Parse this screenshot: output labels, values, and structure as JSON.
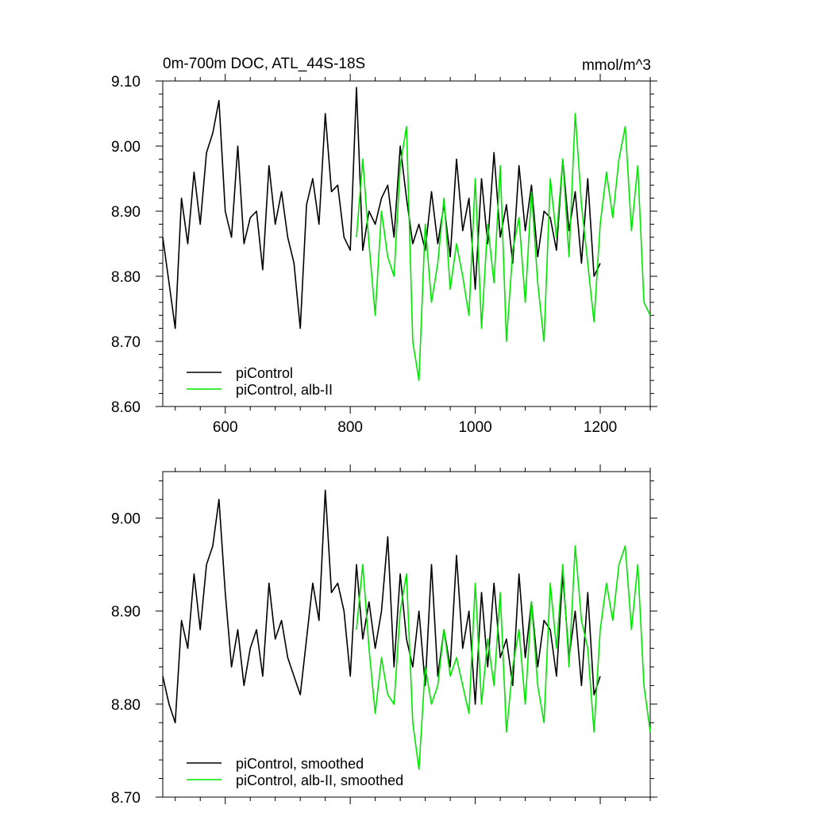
{
  "chart_data": [
    {
      "type": "line",
      "title": "0m-700m DOC, ATL_44S-18S",
      "units": "mmol/m^3",
      "xlim": [
        500,
        1280
      ],
      "ylim": [
        8.6,
        9.1
      ],
      "xticks": [
        600,
        800,
        1000,
        1200
      ],
      "xtick_labels": [
        "600",
        "800",
        "1000",
        "1200"
      ],
      "yticks": [
        8.6,
        8.7,
        8.8,
        8.9,
        9.0,
        9.1
      ],
      "ytick_labels": [
        "8.60",
        "8.70",
        "8.80",
        "8.90",
        "9.00",
        "9.10"
      ],
      "legend_position": "bottom-left",
      "series": [
        {
          "name": "piControl",
          "color": "#000000",
          "x": [
            500,
            510,
            520,
            530,
            540,
            550,
            560,
            570,
            580,
            590,
            600,
            610,
            620,
            630,
            640,
            650,
            660,
            670,
            680,
            690,
            700,
            710,
            720,
            730,
            740,
            750,
            760,
            770,
            780,
            790,
            800,
            810,
            820,
            830,
            840,
            850,
            860,
            870,
            880,
            890,
            900,
            910,
            920,
            930,
            940,
            950,
            960,
            970,
            980,
            990,
            1000,
            1010,
            1020,
            1030,
            1040,
            1050,
            1060,
            1070,
            1080,
            1090,
            1100,
            1110,
            1120,
            1130,
            1140,
            1150,
            1160,
            1170,
            1180,
            1190,
            1200
          ],
          "y": [
            8.86,
            8.79,
            8.72,
            8.92,
            8.85,
            8.96,
            8.88,
            8.99,
            9.02,
            9.07,
            8.9,
            8.86,
            9.0,
            8.85,
            8.89,
            8.9,
            8.81,
            8.97,
            8.88,
            8.93,
            8.86,
            8.82,
            8.72,
            8.91,
            8.95,
            8.88,
            9.05,
            8.93,
            8.94,
            8.86,
            8.84,
            9.09,
            8.84,
            8.9,
            8.88,
            8.92,
            8.94,
            8.86,
            9.0,
            8.92,
            8.85,
            8.88,
            8.84,
            8.93,
            8.85,
            8.91,
            8.83,
            8.98,
            8.87,
            8.92,
            8.78,
            8.95,
            8.85,
            8.99,
            8.86,
            8.91,
            8.82,
            8.97,
            8.87,
            8.94,
            8.83,
            8.9,
            8.89,
            8.84,
            8.98,
            8.87,
            8.93,
            8.82,
            8.95,
            8.8,
            8.82
          ]
        },
        {
          "name": "piControl, alb-II",
          "color": "#00e600",
          "x": [
            810,
            820,
            830,
            840,
            850,
            860,
            870,
            880,
            890,
            900,
            910,
            920,
            930,
            940,
            950,
            960,
            970,
            980,
            990,
            1000,
            1010,
            1020,
            1030,
            1040,
            1050,
            1060,
            1070,
            1080,
            1090,
            1100,
            1110,
            1120,
            1130,
            1140,
            1150,
            1160,
            1170,
            1180,
            1190,
            1200,
            1210,
            1220,
            1230,
            1240,
            1250,
            1260,
            1270,
            1280
          ],
          "y": [
            8.86,
            8.98,
            8.85,
            8.74,
            8.9,
            8.83,
            8.8,
            8.97,
            9.03,
            8.7,
            8.64,
            8.88,
            8.76,
            8.82,
            8.92,
            8.78,
            8.85,
            8.8,
            8.74,
            8.95,
            8.72,
            8.88,
            8.79,
            8.97,
            8.7,
            8.84,
            8.89,
            8.76,
            8.93,
            8.79,
            8.7,
            8.95,
            8.86,
            8.98,
            8.83,
            9.05,
            8.91,
            8.82,
            8.73,
            8.88,
            8.96,
            8.89,
            8.98,
            9.03,
            8.87,
            8.97,
            8.76,
            8.74
          ]
        }
      ]
    },
    {
      "type": "line",
      "title": "",
      "xlim": [
        500,
        1280
      ],
      "ylim": [
        8.7,
        9.05
      ],
      "xticks": [
        600,
        800,
        1000,
        1200
      ],
      "yticks": [
        8.7,
        8.8,
        8.9,
        9.0
      ],
      "ytick_labels": [
        "8.70",
        "8.80",
        "8.90",
        "9.00"
      ],
      "legend_position": "bottom-left",
      "series": [
        {
          "name": "piControl, smoothed",
          "color": "#000000",
          "x": [
            500,
            510,
            520,
            530,
            540,
            550,
            560,
            570,
            580,
            590,
            600,
            610,
            620,
            630,
            640,
            650,
            660,
            670,
            680,
            690,
            700,
            710,
            720,
            730,
            740,
            750,
            760,
            770,
            780,
            790,
            800,
            810,
            820,
            830,
            840,
            850,
            860,
            870,
            880,
            890,
            900,
            910,
            920,
            930,
            940,
            950,
            960,
            970,
            980,
            990,
            1000,
            1010,
            1020,
            1030,
            1040,
            1050,
            1060,
            1070,
            1080,
            1090,
            1100,
            1110,
            1120,
            1130,
            1140,
            1150,
            1160,
            1170,
            1180,
            1190,
            1200
          ],
          "y": [
            8.83,
            8.8,
            8.78,
            8.89,
            8.86,
            8.94,
            8.88,
            8.95,
            8.97,
            9.02,
            8.92,
            8.84,
            8.88,
            8.82,
            8.86,
            8.88,
            8.83,
            8.93,
            8.87,
            8.89,
            8.85,
            8.83,
            8.81,
            8.87,
            8.93,
            8.89,
            9.03,
            8.92,
            8.93,
            8.9,
            8.83,
            8.95,
            8.87,
            8.91,
            8.86,
            8.9,
            8.98,
            8.84,
            8.94,
            8.87,
            8.84,
            8.9,
            8.82,
            8.95,
            8.83,
            8.88,
            8.84,
            8.96,
            8.86,
            8.9,
            8.8,
            8.92,
            8.84,
            8.93,
            8.85,
            8.87,
            8.82,
            8.94,
            8.85,
            8.91,
            8.84,
            8.89,
            8.88,
            8.83,
            8.94,
            8.85,
            8.9,
            8.82,
            8.92,
            8.81,
            8.83
          ]
        },
        {
          "name": "piControl, alb-II, smoothed",
          "color": "#00e600",
          "x": [
            810,
            820,
            830,
            840,
            850,
            860,
            870,
            880,
            890,
            900,
            910,
            920,
            930,
            940,
            950,
            960,
            970,
            980,
            990,
            1000,
            1010,
            1020,
            1030,
            1040,
            1050,
            1060,
            1070,
            1080,
            1090,
            1100,
            1110,
            1120,
            1130,
            1140,
            1150,
            1160,
            1170,
            1180,
            1190,
            1200,
            1210,
            1220,
            1230,
            1240,
            1250,
            1260,
            1270,
            1280
          ],
          "y": [
            8.88,
            8.95,
            8.86,
            8.79,
            8.85,
            8.81,
            8.8,
            8.9,
            8.94,
            8.78,
            8.73,
            8.84,
            8.8,
            8.82,
            8.88,
            8.83,
            8.85,
            8.82,
            8.79,
            8.93,
            8.8,
            8.87,
            8.82,
            8.92,
            8.77,
            8.84,
            8.88,
            8.8,
            8.91,
            8.82,
            8.78,
            8.93,
            8.86,
            8.95,
            8.84,
            8.97,
            8.89,
            8.86,
            8.77,
            8.88,
            8.93,
            8.89,
            8.95,
            8.97,
            8.88,
            8.95,
            8.82,
            8.77
          ]
        }
      ]
    }
  ]
}
